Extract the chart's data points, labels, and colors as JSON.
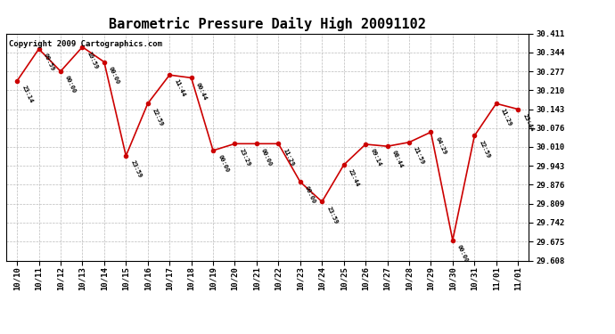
{
  "title": "Barometric Pressure Daily High 20091102",
  "copyright": "Copyright 2009 Cartographics.com",
  "x_labels": [
    "10/10",
    "10/11",
    "10/12",
    "10/13",
    "10/14",
    "10/15",
    "10/16",
    "10/17",
    "10/18",
    "10/19",
    "10/20",
    "10/21",
    "10/22",
    "10/23",
    "10/24",
    "10/25",
    "10/26",
    "10/27",
    "10/28",
    "10/29",
    "10/30",
    "10/31",
    "11/01",
    "11/01"
  ],
  "y_values": [
    30.243,
    30.356,
    30.277,
    30.363,
    30.31,
    29.978,
    30.163,
    30.264,
    30.254,
    29.997,
    30.021,
    30.021,
    30.021,
    29.886,
    29.816,
    29.946,
    30.019,
    30.012,
    30.026,
    30.062,
    29.68,
    30.049,
    30.163,
    30.143
  ],
  "time_labels": [
    "23:14",
    "09:59",
    "00:00",
    "10:59",
    "00:00",
    "23:59",
    "22:59",
    "11:44",
    "00:44",
    "00:00",
    "23:29",
    "00:00",
    "11:29",
    "00:00",
    "23:59",
    "22:44",
    "09:14",
    "08:44",
    "21:59",
    "04:29",
    "00:00",
    "22:59",
    "11:29",
    "23:44"
  ],
  "ylim_min": 29.608,
  "ylim_max": 30.411,
  "y_ticks": [
    29.608,
    29.675,
    29.742,
    29.809,
    29.876,
    29.943,
    30.01,
    30.076,
    30.143,
    30.21,
    30.277,
    30.344,
    30.411
  ],
  "line_color": "#cc0000",
  "marker_color": "#cc0000",
  "bg_color": "#ffffff",
  "plot_bg_color": "#ffffff",
  "grid_color": "#bbbbbb",
  "title_fontsize": 11,
  "copyright_fontsize": 6.5
}
